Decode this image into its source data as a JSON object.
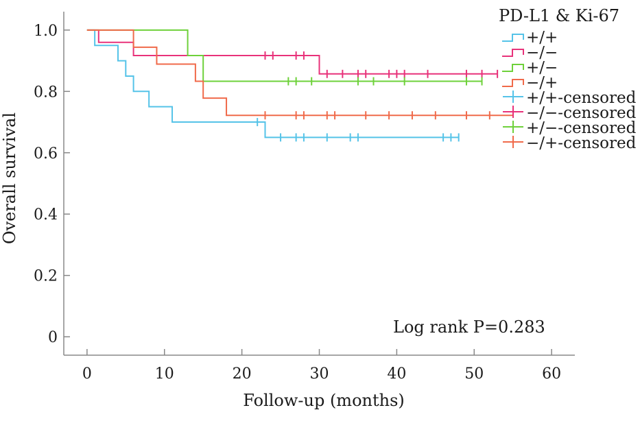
{
  "chart_data": {
    "type": "line",
    "subtype": "kaplan-meier",
    "title": "",
    "xlabel": "Follow-up (months)",
    "ylabel": "Overall survival",
    "xlim": [
      -3,
      63
    ],
    "ylim": [
      -0.06,
      1.06
    ],
    "xticks": [
      0,
      10,
      20,
      30,
      40,
      50,
      60
    ],
    "xtick_labels": [
      "0",
      "10",
      "20",
      "30",
      "40",
      "50",
      "60"
    ],
    "yticks": [
      0,
      0.2,
      0.4,
      0.6,
      0.8,
      1.0
    ],
    "ytick_labels": [
      "0",
      "0.2",
      "0.4",
      "0.6",
      "0.8",
      "1.0"
    ],
    "grid": false,
    "legend": {
      "title": "PD-L1 & Ki-67",
      "placement": "top-right",
      "entries": [
        "+/+",
        "−/−",
        "+/−",
        "−/+",
        "+/+-censored",
        "−/−-censored",
        "+/−-censored",
        "−/+-censored"
      ]
    },
    "annotation": "Log rank P=0.283",
    "series": [
      {
        "name": "+/+",
        "color": "#55c3e8",
        "steps": [
          [
            0,
            1.0
          ],
          [
            1,
            0.95
          ],
          [
            4,
            0.9
          ],
          [
            5,
            0.85
          ],
          [
            6,
            0.8
          ],
          [
            8,
            0.75
          ],
          [
            11,
            0.7
          ],
          [
            23,
            0.65
          ],
          [
            48,
            0.65
          ]
        ],
        "censored": [
          22,
          25,
          27,
          28,
          31,
          34,
          35,
          46,
          47,
          48
        ]
      },
      {
        "name": "−/−",
        "color": "#e8327a",
        "steps": [
          [
            0,
            1.0
          ],
          [
            1.5,
            0.96
          ],
          [
            6,
            0.917
          ],
          [
            30,
            0.857
          ],
          [
            53,
            0.857
          ]
        ],
        "censored": [
          23,
          24,
          27,
          28,
          31,
          33,
          35,
          36,
          39,
          40,
          41,
          44,
          49,
          51,
          53
        ]
      },
      {
        "name": "+/−",
        "color": "#6ed13a",
        "steps": [
          [
            0,
            1.0
          ],
          [
            13,
            0.917
          ],
          [
            15,
            0.833
          ],
          [
            51,
            0.833
          ]
        ],
        "censored": [
          26,
          27,
          29,
          35,
          37,
          41,
          49,
          51
        ]
      },
      {
        "name": "−/+",
        "color": "#f06a4a",
        "steps": [
          [
            0,
            1.0
          ],
          [
            6,
            0.944
          ],
          [
            9,
            0.889
          ],
          [
            14,
            0.833
          ],
          [
            15,
            0.778
          ],
          [
            18,
            0.722
          ],
          [
            55,
            0.722
          ]
        ],
        "censored": [
          23,
          27,
          28,
          31,
          32,
          36,
          39,
          42,
          45,
          49,
          52
        ]
      }
    ]
  }
}
